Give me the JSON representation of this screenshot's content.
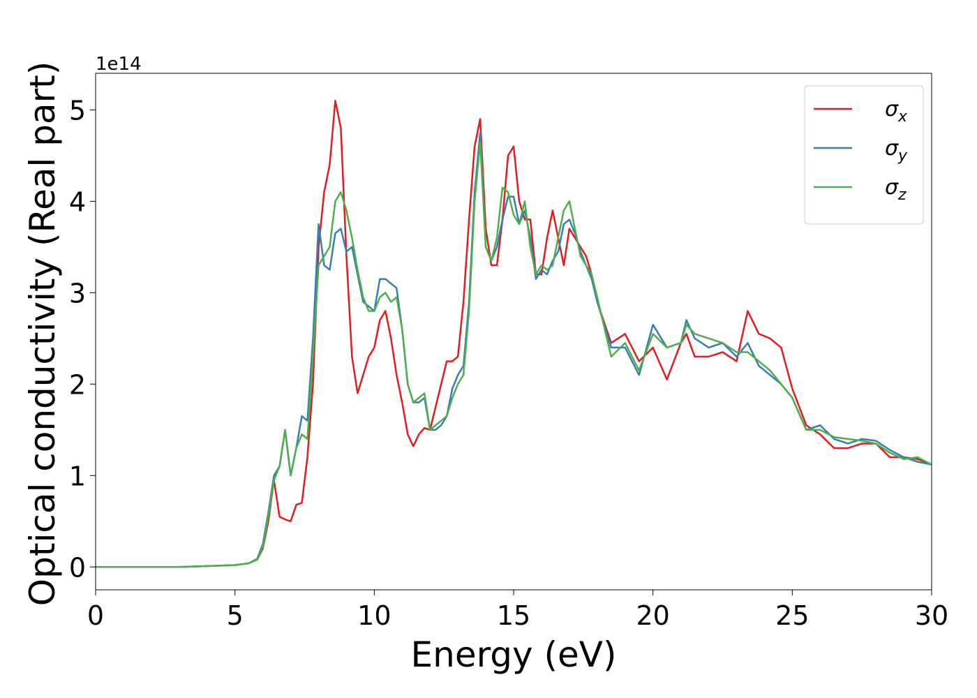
{
  "chart_data": {
    "type": "line",
    "xlabel": "Energy (eV)",
    "ylabel": "Optical conductivity (Real part)",
    "offset_label": "1e14",
    "xlim": [
      0,
      30
    ],
    "ylim": [
      -0.25,
      5.4
    ],
    "xticks": [
      0,
      5,
      10,
      15,
      20,
      25,
      30
    ],
    "yticks": [
      0,
      1,
      2,
      3,
      4,
      5
    ],
    "legend": "upper right",
    "x": [
      0,
      1,
      2,
      3,
      4,
      5,
      5.5,
      5.8,
      6.0,
      6.2,
      6.4,
      6.6,
      6.8,
      7.0,
      7.2,
      7.4,
      7.6,
      7.8,
      8.0,
      8.2,
      8.4,
      8.6,
      8.8,
      9.0,
      9.2,
      9.4,
      9.6,
      9.8,
      10.0,
      10.2,
      10.4,
      10.6,
      10.8,
      11.0,
      11.2,
      11.4,
      11.6,
      11.8,
      12.0,
      12.2,
      12.4,
      12.6,
      12.8,
      13.0,
      13.2,
      13.4,
      13.6,
      13.8,
      14.0,
      14.2,
      14.4,
      14.6,
      14.8,
      15.0,
      15.2,
      15.4,
      15.6,
      15.8,
      16.0,
      16.2,
      16.4,
      16.6,
      16.8,
      17.0,
      17.2,
      17.4,
      17.6,
      17.8,
      18.0,
      18.5,
      19.0,
      19.5,
      20.0,
      20.5,
      21.0,
      21.2,
      21.5,
      22.0,
      22.5,
      23.0,
      23.4,
      23.8,
      24.2,
      24.6,
      25.0,
      25.5,
      26.0,
      26.5,
      27.0,
      27.5,
      28.0,
      28.5,
      29.0,
      29.5,
      30.0
    ],
    "series": [
      {
        "name": "σx",
        "color": "#e41a1c",
        "values": [
          0,
          0,
          0,
          0,
          0.01,
          0.02,
          0.04,
          0.08,
          0.2,
          0.5,
          0.95,
          0.55,
          0.52,
          0.5,
          0.68,
          0.7,
          1.2,
          2.0,
          3.5,
          4.1,
          4.4,
          5.1,
          4.8,
          3.4,
          2.3,
          1.9,
          2.1,
          2.3,
          2.4,
          2.7,
          2.8,
          2.5,
          2.1,
          1.8,
          1.45,
          1.32,
          1.45,
          1.52,
          1.5,
          1.75,
          2.0,
          2.25,
          2.25,
          2.3,
          2.9,
          3.8,
          4.6,
          4.9,
          3.7,
          3.3,
          3.3,
          3.8,
          4.5,
          4.6,
          4.0,
          3.8,
          3.8,
          3.2,
          3.2,
          3.6,
          3.9,
          3.6,
          3.3,
          3.7,
          3.6,
          3.5,
          3.4,
          3.2,
          2.9,
          2.45,
          2.55,
          2.25,
          2.4,
          2.05,
          2.45,
          2.55,
          2.3,
          2.3,
          2.35,
          2.25,
          2.8,
          2.55,
          2.5,
          2.4,
          1.95,
          1.55,
          1.45,
          1.3,
          1.3,
          1.35,
          1.35,
          1.2,
          1.2,
          1.18,
          1.12
        ]
      },
      {
        "name": "σy",
        "color": "#377eb8",
        "values": [
          0,
          0,
          0,
          0,
          0.01,
          0.02,
          0.04,
          0.09,
          0.25,
          0.6,
          1.0,
          1.1,
          1.5,
          1.0,
          1.3,
          1.65,
          1.6,
          2.5,
          3.75,
          3.3,
          3.25,
          3.65,
          3.7,
          3.45,
          3.5,
          3.2,
          2.9,
          2.85,
          2.8,
          3.15,
          3.15,
          3.1,
          3.05,
          2.6,
          2.0,
          1.8,
          1.8,
          1.85,
          1.5,
          1.5,
          1.55,
          1.65,
          1.95,
          2.1,
          2.2,
          2.9,
          4.1,
          4.75,
          3.5,
          3.35,
          3.5,
          3.8,
          4.05,
          4.05,
          3.75,
          3.9,
          3.6,
          3.15,
          3.25,
          3.2,
          3.35,
          3.45,
          3.75,
          3.8,
          3.65,
          3.45,
          3.3,
          3.15,
          2.9,
          2.4,
          2.4,
          2.1,
          2.65,
          2.4,
          2.45,
          2.7,
          2.5,
          2.4,
          2.45,
          2.3,
          2.45,
          2.2,
          2.1,
          2.0,
          1.85,
          1.5,
          1.55,
          1.4,
          1.35,
          1.4,
          1.38,
          1.28,
          1.2,
          1.15,
          1.12
        ]
      },
      {
        "name": "σz",
        "color": "#4daf4a",
        "values": [
          0,
          0,
          0,
          0,
          0.01,
          0.02,
          0.04,
          0.08,
          0.22,
          0.55,
          0.95,
          1.1,
          1.5,
          1.0,
          1.3,
          1.45,
          1.4,
          2.3,
          3.3,
          3.4,
          3.5,
          4.0,
          4.1,
          3.9,
          3.6,
          3.25,
          2.95,
          2.8,
          2.8,
          2.95,
          3.0,
          2.9,
          2.95,
          2.6,
          2.0,
          1.8,
          1.85,
          1.9,
          1.5,
          1.55,
          1.6,
          1.65,
          1.85,
          2.0,
          2.1,
          2.8,
          4.0,
          4.65,
          3.5,
          3.35,
          3.6,
          4.15,
          4.1,
          3.85,
          3.75,
          4.0,
          3.5,
          3.2,
          3.3,
          3.25,
          3.3,
          3.6,
          3.9,
          4.0,
          3.7,
          3.4,
          3.3,
          3.2,
          2.95,
          2.3,
          2.45,
          2.15,
          2.55,
          2.4,
          2.45,
          2.65,
          2.55,
          2.5,
          2.45,
          2.35,
          2.35,
          2.25,
          2.15,
          2.0,
          1.85,
          1.5,
          1.5,
          1.42,
          1.4,
          1.38,
          1.35,
          1.25,
          1.18,
          1.2,
          1.12
        ]
      }
    ]
  }
}
